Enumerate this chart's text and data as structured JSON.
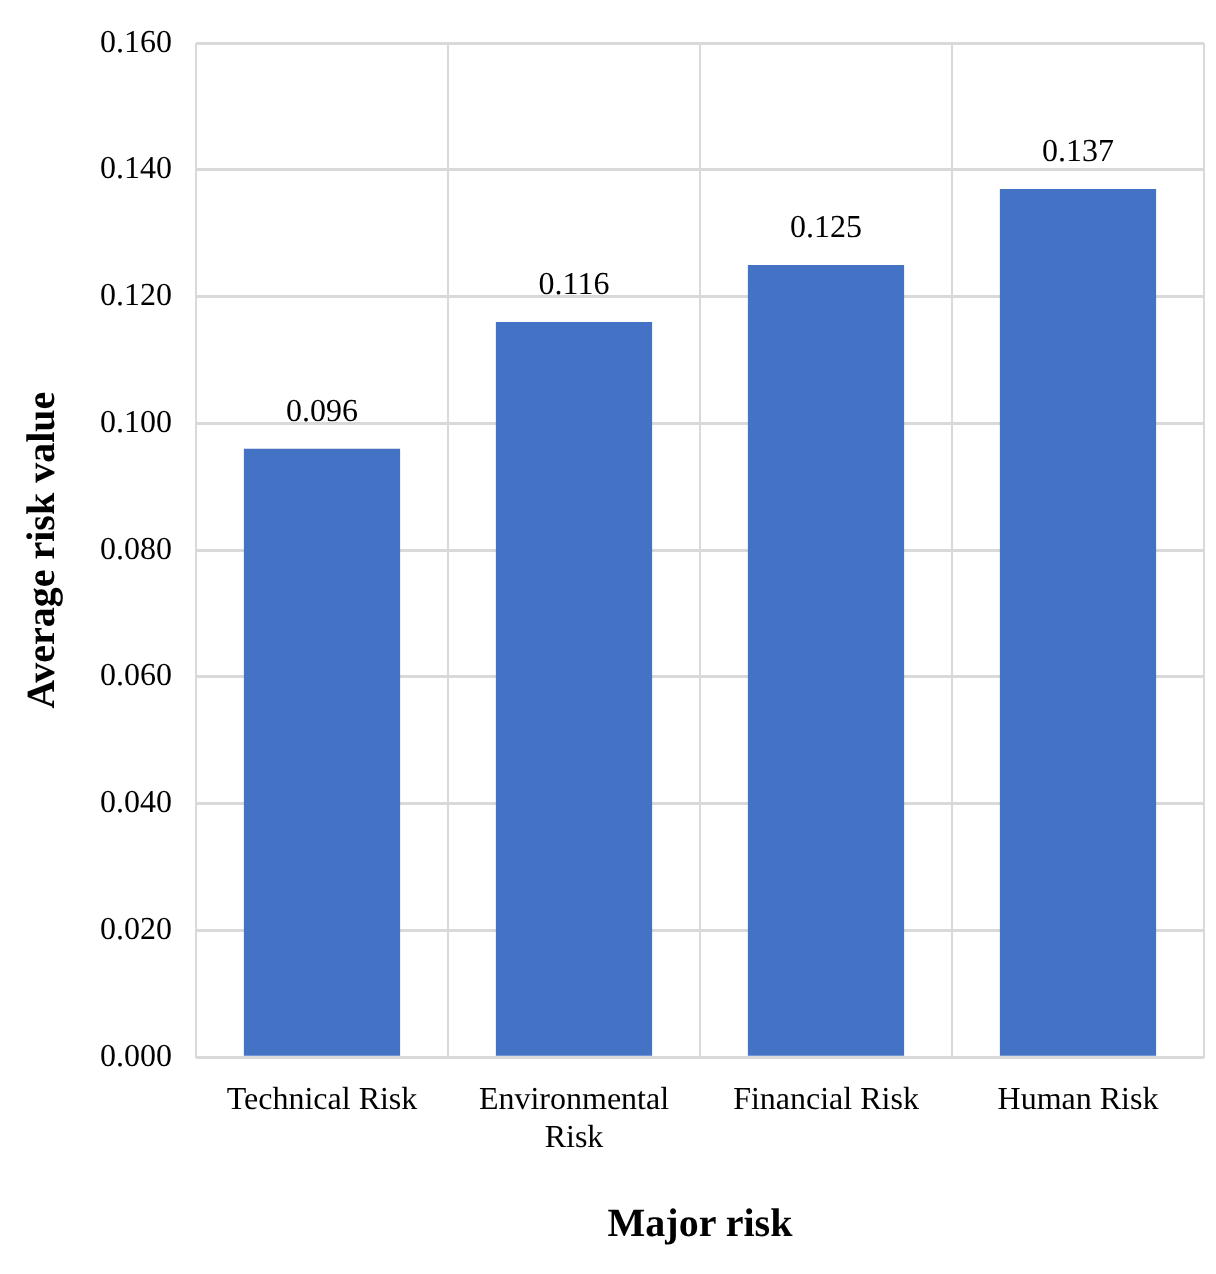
{
  "chart_data": {
    "type": "bar",
    "xlabel": "Major risk",
    "ylabel": "Average risk value",
    "categories": [
      "Technical Risk",
      "Environmental Risk",
      "Financial Risk",
      "Human Risk"
    ],
    "values": [
      0.096,
      0.116,
      0.125,
      0.137
    ],
    "color": "#4472c4",
    "ylim": [
      0,
      0.16
    ],
    "yticks": [
      {
        "value": 0,
        "label": "0.000"
      },
      {
        "value": 0.02,
        "label": "0.020"
      },
      {
        "value": 0.04,
        "label": "0.040"
      },
      {
        "value": 0.06,
        "label": "0.060"
      },
      {
        "value": 0.08,
        "label": "0.080"
      },
      {
        "value": 0.1,
        "label": "0.100"
      },
      {
        "value": 0.12,
        "label": "0.120"
      },
      {
        "value": 0.14,
        "label": "0.140"
      },
      {
        "value": 0.16,
        "label": "0.160"
      }
    ],
    "grid": true,
    "data_labels": true
  }
}
